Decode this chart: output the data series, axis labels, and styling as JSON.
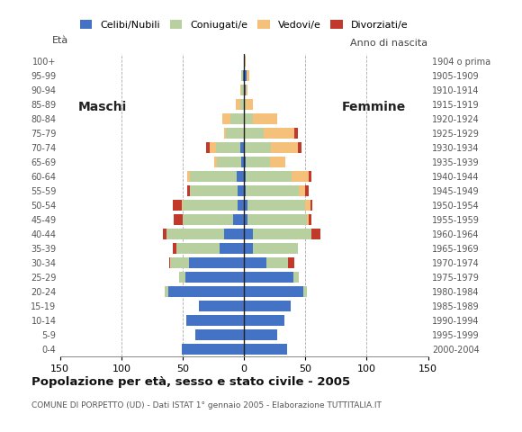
{
  "age_groups": [
    "0-4",
    "5-9",
    "10-14",
    "15-19",
    "20-24",
    "25-29",
    "30-34",
    "35-39",
    "40-44",
    "45-49",
    "50-54",
    "55-59",
    "60-64",
    "65-69",
    "70-74",
    "75-79",
    "80-84",
    "85-89",
    "90-94",
    "95-99",
    "100+"
  ],
  "birth_years": [
    "2000-2004",
    "1995-1999",
    "1990-1994",
    "1985-1989",
    "1980-1984",
    "1975-1979",
    "1970-1974",
    "1965-1969",
    "1960-1964",
    "1955-1959",
    "1950-1954",
    "1945-1949",
    "1940-1944",
    "1935-1939",
    "1930-1934",
    "1925-1929",
    "1920-1924",
    "1915-1919",
    "1910-1914",
    "1905-1909",
    "1904 o prima"
  ],
  "maschi": {
    "celibe": [
      51,
      40,
      47,
      37,
      62,
      48,
      45,
      20,
      16,
      9,
      5,
      5,
      6,
      2,
      3,
      0,
      0,
      0,
      0,
      1,
      0
    ],
    "coniugato": [
      0,
      0,
      0,
      0,
      3,
      5,
      15,
      35,
      47,
      41,
      45,
      39,
      38,
      20,
      20,
      15,
      11,
      3,
      2,
      1,
      0
    ],
    "vedovo": [
      0,
      0,
      0,
      0,
      0,
      0,
      0,
      0,
      0,
      0,
      1,
      0,
      2,
      2,
      5,
      1,
      7,
      4,
      1,
      0,
      0
    ],
    "divorziato": [
      0,
      0,
      0,
      0,
      0,
      0,
      1,
      3,
      3,
      7,
      7,
      2,
      0,
      0,
      3,
      0,
      0,
      0,
      0,
      0,
      0
    ]
  },
  "femmine": {
    "nubile": [
      35,
      27,
      33,
      38,
      48,
      40,
      18,
      7,
      7,
      3,
      3,
      1,
      1,
      1,
      0,
      0,
      0,
      0,
      1,
      2,
      0
    ],
    "coniugata": [
      0,
      0,
      0,
      0,
      3,
      5,
      18,
      37,
      48,
      48,
      47,
      44,
      38,
      20,
      22,
      16,
      7,
      1,
      0,
      0,
      0
    ],
    "vedova": [
      0,
      0,
      0,
      0,
      0,
      0,
      0,
      0,
      0,
      2,
      4,
      5,
      14,
      13,
      22,
      25,
      20,
      6,
      2,
      2,
      1
    ],
    "divorziata": [
      0,
      0,
      0,
      0,
      0,
      0,
      5,
      0,
      7,
      2,
      2,
      3,
      2,
      0,
      3,
      3,
      0,
      0,
      0,
      0,
      0
    ]
  },
  "colors": {
    "celibe": "#4472c4",
    "coniugato": "#b8cfa0",
    "vedovo": "#f5c07a",
    "divorziato": "#c0392b"
  },
  "title": "Popolazione per età, sesso e stato civile - 2005",
  "subtitle": "COMUNE DI PORPETTO (UD) - Dati ISTAT 1° gennaio 2005 - Elaborazione TUTTITALIA.IT",
  "xlabel_left": "Maschi",
  "xlabel_right": "Femmine",
  "ylabel_left": "Età",
  "ylabel_right": "Anno di nascita",
  "xlim": 150,
  "legend_labels": [
    "Celibi/Nubili",
    "Coniugati/e",
    "Vedovi/e",
    "Divorziati/e"
  ],
  "background_color": "#ffffff",
  "grid_color": "#aaaaaa"
}
